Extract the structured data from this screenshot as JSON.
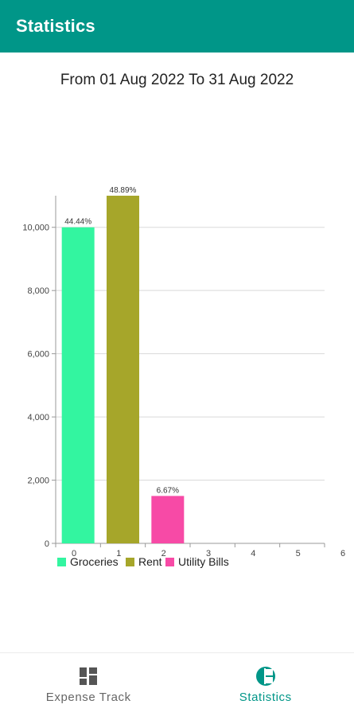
{
  "appbar": {
    "title": "Statistics"
  },
  "date_range": "From 01 Aug 2022 To 31 Aug 2022",
  "nav": {
    "expense_label": "Expense Track",
    "stats_label": "Statistics"
  },
  "colors": {
    "primary": "#009688",
    "inactive": "#555555"
  },
  "chart_data": {
    "type": "bar",
    "categories": [
      "Groceries",
      "Rent",
      "Utility Bills"
    ],
    "x": [
      0.5,
      1.5,
      2.5
    ],
    "values": [
      10000,
      11000,
      1500
    ],
    "labels": [
      "44.44%",
      "48.89%",
      "6.67%"
    ],
    "colors": [
      "#33f5a0",
      "#a6a62a",
      "#f74aa6"
    ],
    "xticks": [
      "0",
      "1",
      "2",
      "3",
      "4",
      "5",
      "6"
    ],
    "yticks": [
      "0",
      "2,000",
      "4,000",
      "6,000",
      "8,000",
      "10,000"
    ],
    "xlim": [
      0,
      6
    ],
    "ylim": [
      0,
      11000
    ],
    "legend": [
      "Groceries",
      "Rent",
      "Utility Bills"
    ],
    "grid": true,
    "legend_position": "bottom-left"
  }
}
